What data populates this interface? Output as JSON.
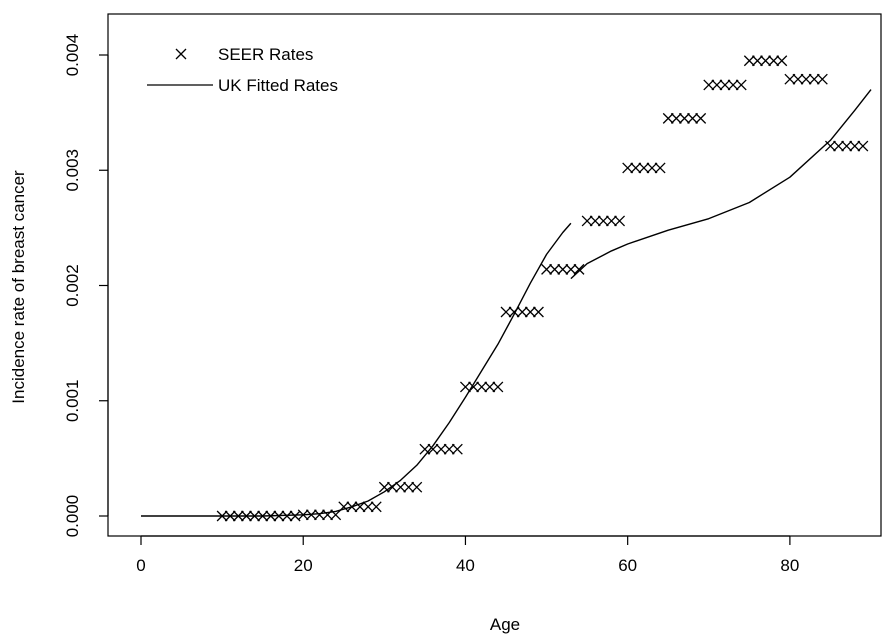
{
  "chart_data": {
    "type": "line",
    "title": "",
    "xlabel": "Age",
    "ylabel": "Incidence rate of breast cancer",
    "xlim": [
      0,
      90
    ],
    "ylim": [
      0,
      0.004
    ],
    "xticks": [
      0,
      20,
      40,
      60,
      80
    ],
    "xtick_labels": [
      "0",
      "20",
      "40",
      "60",
      "80"
    ],
    "yticks": [
      0,
      0.001,
      0.002,
      0.003,
      0.004
    ],
    "ytick_labels": [
      "0.000",
      "0.001",
      "0.002",
      "0.003",
      "0.004"
    ],
    "grid": false,
    "legend_position": "top-left",
    "series": [
      {
        "name": "SEER Rates",
        "kind": "points",
        "marker": "x",
        "color": "#000000",
        "points": [
          [
            10,
            0.0
          ],
          [
            11,
            0.0
          ],
          [
            12,
            0.0
          ],
          [
            13,
            0.0
          ],
          [
            14,
            0.0
          ],
          [
            15,
            0.0
          ],
          [
            16,
            0.0
          ],
          [
            17,
            0.0
          ],
          [
            18,
            0.0
          ],
          [
            19,
            0.0
          ],
          [
            20,
            1e-05
          ],
          [
            21,
            1e-05
          ],
          [
            22,
            1e-05
          ],
          [
            23,
            1e-05
          ],
          [
            24,
            1e-05
          ],
          [
            25,
            8e-05
          ],
          [
            26,
            8e-05
          ],
          [
            27,
            8e-05
          ],
          [
            28,
            8e-05
          ],
          [
            29,
            8e-05
          ],
          [
            30,
            0.00025
          ],
          [
            31,
            0.00025
          ],
          [
            32,
            0.00025
          ],
          [
            33,
            0.00025
          ],
          [
            34,
            0.00025
          ],
          [
            35,
            0.00058
          ],
          [
            36,
            0.00058
          ],
          [
            37,
            0.00058
          ],
          [
            38,
            0.00058
          ],
          [
            39,
            0.00058
          ],
          [
            40,
            0.00112
          ],
          [
            41,
            0.00112
          ],
          [
            42,
            0.00112
          ],
          [
            43,
            0.00112
          ],
          [
            44,
            0.00112
          ],
          [
            45,
            0.00177
          ],
          [
            46,
            0.00177
          ],
          [
            47,
            0.00177
          ],
          [
            48,
            0.00177
          ],
          [
            49,
            0.00177
          ],
          [
            50,
            0.00214
          ],
          [
            51,
            0.00214
          ],
          [
            52,
            0.00214
          ],
          [
            53,
            0.00214
          ],
          [
            54,
            0.00214
          ],
          [
            55,
            0.00256
          ],
          [
            56,
            0.00256
          ],
          [
            57,
            0.00256
          ],
          [
            58,
            0.00256
          ],
          [
            59,
            0.00256
          ],
          [
            60,
            0.00302
          ],
          [
            61,
            0.00302
          ],
          [
            62,
            0.00302
          ],
          [
            63,
            0.00302
          ],
          [
            64,
            0.00302
          ],
          [
            65,
            0.00345
          ],
          [
            66,
            0.00345
          ],
          [
            67,
            0.00345
          ],
          [
            68,
            0.00345
          ],
          [
            69,
            0.00345
          ],
          [
            70,
            0.00374
          ],
          [
            71,
            0.00374
          ],
          [
            72,
            0.00374
          ],
          [
            73,
            0.00374
          ],
          [
            74,
            0.00374
          ],
          [
            75,
            0.00395
          ],
          [
            76,
            0.00395
          ],
          [
            77,
            0.00395
          ],
          [
            78,
            0.00395
          ],
          [
            79,
            0.00395
          ],
          [
            80,
            0.00379
          ],
          [
            81,
            0.00379
          ],
          [
            82,
            0.00379
          ],
          [
            83,
            0.00379
          ],
          [
            84,
            0.00379
          ],
          [
            85,
            0.00321
          ],
          [
            86,
            0.00321
          ],
          [
            87,
            0.00321
          ],
          [
            88,
            0.00321
          ],
          [
            89,
            0.00321
          ]
        ]
      },
      {
        "name": "UK Fitted Rates",
        "kind": "line",
        "color": "#000000",
        "segments": [
          [
            [
              0,
              0.0
            ],
            [
              10,
              0.0
            ],
            [
              15,
              0.0
            ],
            [
              20,
              1e-05
            ],
            [
              22,
              2e-05
            ],
            [
              24,
              4e-05
            ],
            [
              26,
              8e-05
            ],
            [
              28,
              0.00013
            ],
            [
              30,
              0.00021
            ],
            [
              32,
              0.00031
            ],
            [
              34,
              0.00044
            ],
            [
              36,
              0.00061
            ],
            [
              38,
              0.00081
            ],
            [
              40,
              0.00103
            ],
            [
              42,
              0.00126
            ],
            [
              44,
              0.00149
            ],
            [
              46,
              0.00175
            ],
            [
              48,
              0.00202
            ],
            [
              50,
              0.00227
            ],
            [
              52,
              0.00246
            ],
            [
              53,
              0.00254
            ]
          ],
          [
            [
              53,
              0.00206
            ],
            [
              55,
              0.00219
            ],
            [
              58,
              0.0023
            ],
            [
              60,
              0.00236
            ],
            [
              65,
              0.00248
            ],
            [
              70,
              0.00258
            ],
            [
              75,
              0.00272
            ],
            [
              80,
              0.00294
            ],
            [
              85,
              0.00326
            ],
            [
              88,
              0.00352
            ],
            [
              90,
              0.0037
            ]
          ]
        ]
      }
    ]
  }
}
